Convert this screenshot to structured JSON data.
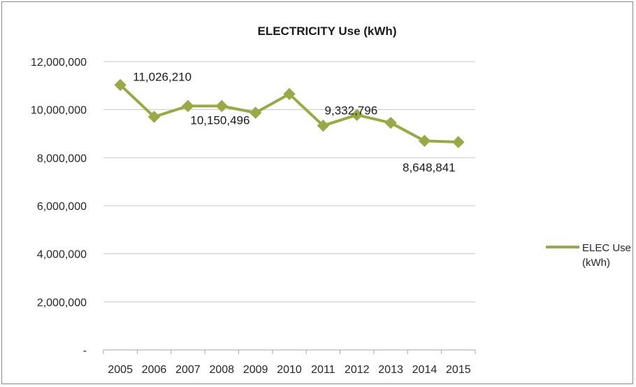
{
  "chart_data": {
    "type": "line",
    "title": "ELECTRICITY Use (kWh)",
    "xlabel": "",
    "ylabel": "",
    "categories": [
      "2005",
      "2006",
      "2007",
      "2008",
      "2009",
      "2010",
      "2011",
      "2012",
      "2013",
      "2014",
      "2015"
    ],
    "series": [
      {
        "name_lines": [
          "ELEC Use",
          "(kWh)"
        ],
        "color": "#9aa845",
        "values": [
          11026210,
          9700000,
          10150496,
          10150000,
          9870000,
          10650000,
          9332796,
          9780000,
          9450000,
          8700000,
          8648841
        ]
      }
    ],
    "y_ticks": [
      "-",
      "2,000,000",
      "4,000,000",
      "6,000,000",
      "8,000,000",
      "10,000,000",
      "12,000,000"
    ],
    "ylim": [
      0,
      12000000
    ],
    "data_labels": [
      {
        "index": 0,
        "text": "11,026,210"
      },
      {
        "index": 2,
        "text": "10,150,496"
      },
      {
        "index": 6,
        "text": "9,332,796"
      },
      {
        "index": 10,
        "text": "8,648,841"
      }
    ],
    "grid": true,
    "legend": "right"
  }
}
